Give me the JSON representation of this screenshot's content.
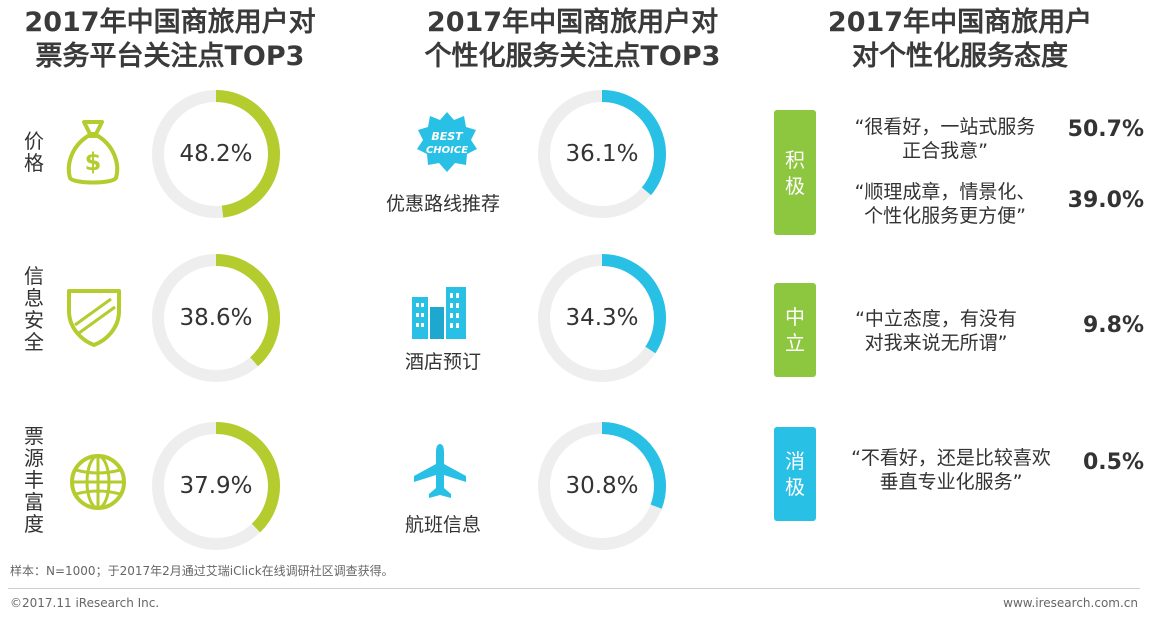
{
  "titles": {
    "col1": [
      "2017年中国商旅用户对",
      "票务平台关注点TOP3"
    ],
    "col2": [
      "2017年中国商旅用户对",
      "个性化服务关注点TOP3"
    ],
    "col3": [
      "2017年中国商旅用户",
      "对个性化服务态度"
    ]
  },
  "colors": {
    "green": "#b5cc2e",
    "blue": "#29c0e6",
    "track": "#eeeeee",
    "green_badge": "#8dc63f"
  },
  "chart_data": [
    {
      "type": "donut",
      "title": "2017年中国商旅用户对票务平台关注点TOP3",
      "categories": [
        "价格",
        "信息安全",
        "票源丰富度"
      ],
      "values": [
        48.2,
        38.6,
        37.9
      ],
      "value_labels": [
        "48.2%",
        "38.6%",
        "37.9%"
      ],
      "icons": [
        "money-bag-icon",
        "shield-icon",
        "globe-icon"
      ]
    },
    {
      "type": "donut",
      "title": "2017年中国商旅用户对个性化服务关注点TOP3",
      "categories": [
        "优惠路线推荐",
        "酒店预订",
        "航班信息"
      ],
      "values": [
        36.1,
        34.3,
        30.8
      ],
      "value_labels": [
        "36.1%",
        "34.3%",
        "30.8%"
      ],
      "icons": [
        "best-choice-badge-icon",
        "hotel-building-icon",
        "airplane-icon"
      ]
    },
    {
      "type": "table",
      "title": "2017年中国商旅用户对个性化服务态度",
      "groups": [
        {
          "label": "积极",
          "color": "#8dc63f",
          "items": [
            {
              "quote": [
                "“很看好，一站式服务",
                "正合我意”"
              ],
              "value": 50.7,
              "label": "50.7%"
            },
            {
              "quote": [
                "“顺理成章，情景化、",
                "个性化服务更方便”"
              ],
              "value": 39.0,
              "label": "39.0%"
            }
          ]
        },
        {
          "label": "中立",
          "color": "#8dc63f",
          "items": [
            {
              "quote": [
                "“中立态度，有没有",
                "对我来说无所谓”"
              ],
              "value": 9.8,
              "label": "9.8%"
            }
          ]
        },
        {
          "label": "消极",
          "color": "#29c0e6",
          "items": [
            {
              "quote": [
                "“不看好，还是比较喜欢",
                "垂直专业化服务”"
              ],
              "value": 0.5,
              "label": "0.5%"
            }
          ]
        }
      ]
    }
  ],
  "note": "样本：N=1000；于2017年2月通过艾瑞iClick在线调研社区调查获得。",
  "footer": {
    "copyright": "©2017.11 iResearch Inc.",
    "website": "www.iresearch.com.cn"
  },
  "best_choice_text": [
    "BEST",
    "CHOICE"
  ]
}
